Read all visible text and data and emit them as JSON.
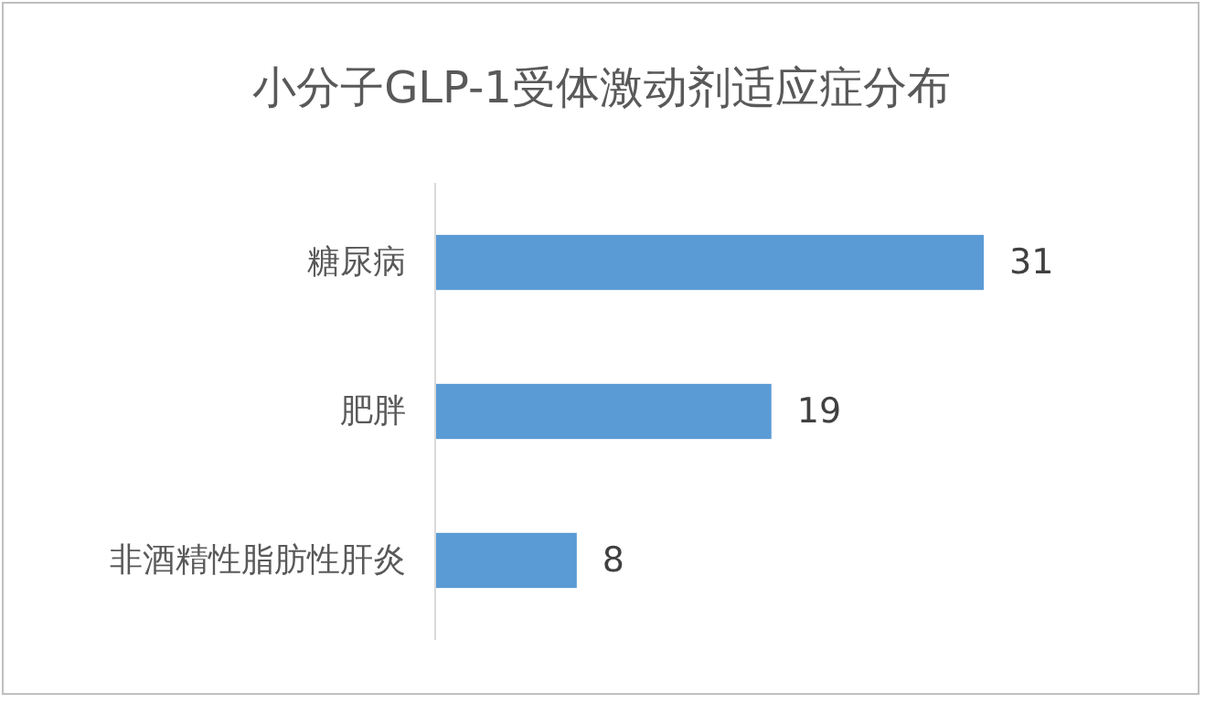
{
  "chart_data": {
    "type": "bar",
    "orientation": "horizontal",
    "title": "小分子GLP-1受体激动剂适应症分布",
    "categories": [
      "糖尿病",
      "肥胖",
      "非酒精性脂肪性肝炎"
    ],
    "values": [
      31,
      19,
      8
    ],
    "color": "#5b9bd5",
    "data_labels": true
  }
}
